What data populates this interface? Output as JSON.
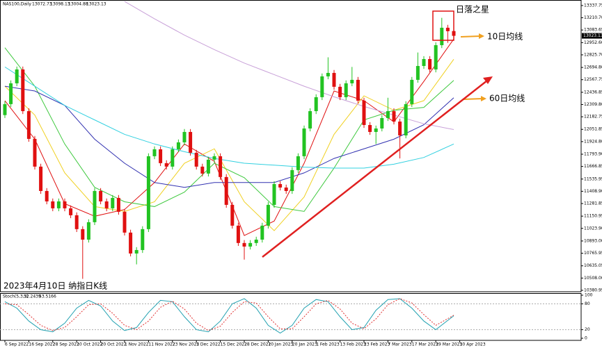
{
  "chart_data": {
    "type": "candlestick",
    "symbol": "NAS100,Daily",
    "annotations": {
      "star": "日落之星",
      "ma10": "10日均线",
      "ma60": "60日均线",
      "caption": "2023年4月10日 纳指日K线"
    },
    "up_color": "#22c322",
    "down_color": "#e01010",
    "candles": [
      [
        12200,
        12344,
        12170,
        12314
      ],
      [
        12314,
        12560,
        12284,
        12530
      ],
      [
        12530,
        12704,
        12500,
        12674
      ],
      [
        12674,
        12704,
        12211,
        12241
      ],
      [
        12241,
        12271,
        11923,
        11953
      ],
      [
        11953,
        11983,
        11635,
        11665
      ],
      [
        11665,
        11695,
        11382,
        11412
      ],
      [
        11412,
        11442,
        11274,
        11304
      ],
      [
        11304,
        11334,
        11202,
        11232
      ],
      [
        11232,
        11334,
        11202,
        11304
      ],
      [
        11304,
        11334,
        11202,
        11232
      ],
      [
        11232,
        11262,
        11130,
        11160
      ],
      [
        11160,
        11190,
        10986,
        11016
      ],
      [
        11016,
        11046,
        10500,
        10907
      ],
      [
        10907,
        11118,
        10877,
        11088
      ],
      [
        11088,
        11442,
        11058,
        11412
      ],
      [
        11412,
        11442,
        11274,
        11304
      ],
      [
        11304,
        11334,
        11202,
        11232
      ],
      [
        11232,
        11370,
        11202,
        11340
      ],
      [
        11340,
        11370,
        11166,
        11196
      ],
      [
        11196,
        11226,
        10950,
        10980
      ],
      [
        10980,
        11010,
        10733,
        10763
      ],
      [
        10763,
        10829,
        10650,
        10799
      ],
      [
        10799,
        11046,
        10769,
        11016
      ],
      [
        11016,
        11803,
        10986,
        11773
      ],
      [
        11773,
        11875,
        11743,
        11845
      ],
      [
        11845,
        11875,
        11671,
        11701
      ],
      [
        11701,
        11731,
        11635,
        11665
      ],
      [
        11665,
        11875,
        11635,
        11845
      ],
      [
        11845,
        11947,
        11815,
        11917
      ],
      [
        11917,
        12055,
        11887,
        12025
      ],
      [
        12025,
        12055,
        11779,
        11809
      ],
      [
        11809,
        11839,
        11635,
        11665
      ],
      [
        11665,
        11695,
        11563,
        11593
      ],
      [
        11593,
        11767,
        11563,
        11737
      ],
      [
        11737,
        11803,
        11707,
        11773
      ],
      [
        11773,
        11803,
        11527,
        11557
      ],
      [
        11557,
        11587,
        11238,
        11268
      ],
      [
        11268,
        11298,
        11022,
        11052
      ],
      [
        11052,
        11082,
        10842,
        10872
      ],
      [
        10872,
        10902,
        10700,
        10835
      ],
      [
        10835,
        10902,
        10805,
        10872
      ],
      [
        10872,
        10937,
        10842,
        10907
      ],
      [
        10907,
        11082,
        10877,
        11052
      ],
      [
        11052,
        11298,
        11022,
        11268
      ],
      [
        11268,
        11514,
        11238,
        11484
      ],
      [
        11484,
        11514,
        11418,
        11448
      ],
      [
        11448,
        11478,
        11382,
        11412
      ],
      [
        11412,
        11659,
        11382,
        11629
      ],
      [
        11629,
        11803,
        11599,
        11773
      ],
      [
        11773,
        12091,
        11743,
        12061
      ],
      [
        12061,
        12271,
        12031,
        12241
      ],
      [
        12241,
        12416,
        12211,
        12386
      ],
      [
        12386,
        12632,
        12356,
        12602
      ],
      [
        12602,
        12800,
        12572,
        12638
      ],
      [
        12638,
        12668,
        12464,
        12494
      ],
      [
        12494,
        12524,
        12356,
        12386
      ],
      [
        12386,
        12560,
        12356,
        12530
      ],
      [
        12530,
        12700,
        12500,
        12566
      ],
      [
        12566,
        12596,
        12320,
        12350
      ],
      [
        12350,
        12380,
        12067,
        12097
      ],
      [
        12097,
        12127,
        11995,
        12025
      ],
      [
        12025,
        12091,
        11900,
        12061
      ],
      [
        12061,
        12199,
        12031,
        12169
      ],
      [
        12169,
        12380,
        12139,
        12241
      ],
      [
        12241,
        12271,
        12103,
        12133
      ],
      [
        12133,
        12163,
        11750,
        11989
      ],
      [
        11989,
        12344,
        11959,
        12314
      ],
      [
        12314,
        12596,
        12284,
        12566
      ],
      [
        12566,
        12850,
        12536,
        12710
      ],
      [
        12710,
        12812,
        12680,
        12782
      ],
      [
        12782,
        12812,
        12644,
        12674
      ],
      [
        12674,
        12956,
        12644,
        12926
      ],
      [
        12926,
        13210,
        12896,
        13107
      ],
      [
        13107,
        13137,
        12950,
        13071
      ],
      [
        13072.73,
        13098.13,
        13004.88,
        13023.13
      ]
    ],
    "lines": [
      {
        "color": "#e01010",
        "x": [
          0,
          5,
          10,
          15,
          20,
          25,
          30,
          35,
          40,
          45,
          50,
          55,
          60,
          65,
          70,
          75
        ],
        "values": [
          12350,
          11950,
          11280,
          11150,
          11220,
          11500,
          11900,
          11720,
          10950,
          11100,
          11700,
          12450,
          12350,
          12130,
          12550,
          12990
        ]
      },
      {
        "color": "#f0d020",
        "x": [
          0,
          5,
          10,
          15,
          20,
          25,
          30,
          35,
          40,
          45,
          50,
          55,
          60,
          65,
          70,
          75
        ],
        "values": [
          12500,
          12200,
          11600,
          11250,
          11200,
          11300,
          11700,
          11850,
          11300,
          11000,
          11350,
          12000,
          12400,
          12250,
          12350,
          12780
        ]
      },
      {
        "color": "#3cc83c",
        "x": [
          0,
          5,
          10,
          15,
          20,
          25,
          30,
          35,
          40,
          45,
          50,
          55,
          60,
          65,
          70,
          75
        ],
        "values": [
          12900,
          12500,
          11900,
          11450,
          11300,
          11250,
          11400,
          11700,
          11550,
          11250,
          11200,
          11650,
          12150,
          12250,
          12280,
          12560
        ]
      },
      {
        "color": "#3030b0",
        "x": [
          0,
          5,
          10,
          15,
          20,
          25,
          30,
          35,
          40,
          45,
          50,
          55,
          60,
          65,
          70,
          75
        ],
        "values": [
          12500,
          12450,
          12300,
          11950,
          11700,
          11500,
          11450,
          11500,
          11500,
          11500,
          11600,
          11750,
          11850,
          11950,
          12100,
          12380
        ]
      },
      {
        "color": "#30d0e0",
        "x": [
          0,
          5,
          10,
          15,
          20,
          25,
          30,
          35,
          40,
          45,
          50,
          55,
          60,
          65,
          70,
          75
        ],
        "values": [
          12700,
          12500,
          12300,
          12150,
          12000,
          11900,
          11820,
          11750,
          11700,
          11680,
          11660,
          11650,
          11650,
          11690,
          11760,
          11900
        ]
      },
      {
        "color": "#c8a0d8",
        "x": [
          20,
          25,
          30,
          35,
          40,
          45,
          50,
          55,
          60,
          65,
          70,
          75
        ],
        "values": [
          13380,
          13200,
          13030,
          12880,
          12740,
          12620,
          12500,
          12390,
          12290,
          12200,
          12110,
          12050
        ]
      }
    ],
    "ylim": [
      10366,
      13395
    ],
    "yticks": [
      {
        "value": 13337.75,
        "label": "13337.75"
      },
      {
        "value": 13210.7,
        "label": "13210.70"
      },
      {
        "value": 13083.65,
        "label": "13083.65"
      },
      {
        "value": 12952.6,
        "label": "12952.60"
      },
      {
        "value": 12825.7,
        "label": "12825.70"
      },
      {
        "value": 12694.8,
        "label": "12694.80"
      },
      {
        "value": 12567.75,
        "label": "12567.75"
      },
      {
        "value": 12436.85,
        "label": "12436.85"
      },
      {
        "value": 12309.8,
        "label": "12309.80"
      },
      {
        "value": 12182.75,
        "label": "12182.75"
      },
      {
        "value": 12051.85,
        "label": "12051.85"
      },
      {
        "value": 11924.8,
        "label": "11924.80"
      },
      {
        "value": 11793.9,
        "label": "11793.90"
      },
      {
        "value": 11666.85,
        "label": "11666.85"
      },
      {
        "value": 11535.95,
        "label": "11535.95"
      },
      {
        "value": 11408.9,
        "label": "11408.90"
      },
      {
        "value": 11281.85,
        "label": "11281.85"
      },
      {
        "value": 11150.95,
        "label": "11150.95"
      },
      {
        "value": 11023.9,
        "label": "11023.90"
      },
      {
        "value": 10893.0,
        "label": "10893.00"
      },
      {
        "value": 10765.95,
        "label": "10765.95"
      },
      {
        "value": 10635.05,
        "label": "10635.05"
      },
      {
        "value": 10508.0,
        "label": "10508.00"
      },
      {
        "value": 10380.95,
        "label": "10380.95"
      }
    ],
    "xticks": [
      {
        "value": 0,
        "label": "6 Sep 2022"
      },
      {
        "value": 4,
        "label": "16 Sep 2022"
      },
      {
        "value": 8,
        "label": "28 Sep 2022"
      },
      {
        "value": 12,
        "label": "10 Oct 2022"
      },
      {
        "value": 16,
        "label": "20 Oct 2022"
      },
      {
        "value": 20,
        "label": "1 Nov 2022"
      },
      {
        "value": 24,
        "label": "11 Nov 2022"
      },
      {
        "value": 28,
        "label": "23 Nov 2022"
      },
      {
        "value": 32,
        "label": "5 Dec 2022"
      },
      {
        "value": 36,
        "label": "15 Dec 2022"
      },
      {
        "value": 40,
        "label": "28 Dec 2022"
      },
      {
        "value": 44,
        "label": "10 Jan 2023"
      },
      {
        "value": 48,
        "label": "20 Jan 2023"
      },
      {
        "value": 52,
        "label": "1 Feb 2023"
      },
      {
        "value": 56,
        "label": "13 Feb 2023"
      },
      {
        "value": 60,
        "label": "23 Feb 2023"
      },
      {
        "value": 64,
        "label": "7 Mar 2023"
      },
      {
        "value": 68,
        "label": "17 Mar 2023"
      },
      {
        "value": 72,
        "label": "29 Mar 2023"
      },
      {
        "value": 76,
        "label": "10 Apr 2023"
      }
    ],
    "stoch": {
      "label": "Stoch(5,3,3)",
      "ylim": [
        0,
        100
      ],
      "yticks": [
        100,
        80,
        20,
        0
      ],
      "levels": [
        80,
        20
      ],
      "x": [
        0,
        2,
        4,
        6,
        8,
        10,
        12,
        14,
        16,
        18,
        20,
        22,
        24,
        26,
        28,
        30,
        32,
        34,
        36,
        38,
        40,
        42,
        44,
        46,
        48,
        50,
        52,
        54,
        56,
        58,
        60,
        62,
        64,
        66,
        68,
        70,
        72,
        75
      ],
      "main": {
        "color": "#20a0b0",
        "values": [
          85,
          70,
          40,
          20,
          15,
          35,
          70,
          88,
          75,
          40,
          18,
          25,
          60,
          88,
          85,
          50,
          20,
          15,
          40,
          80,
          92,
          70,
          30,
          12,
          30,
          70,
          90,
          85,
          50,
          20,
          25,
          65,
          90,
          92,
          70,
          40,
          20,
          52.2439
        ]
      },
      "signal": {
        "color": "#e03030",
        "values": [
          80,
          78,
          55,
          30,
          18,
          25,
          50,
          78,
          80,
          58,
          30,
          20,
          40,
          72,
          86,
          68,
          35,
          18,
          28,
          60,
          85,
          82,
          50,
          22,
          22,
          50,
          80,
          88,
          68,
          35,
          22,
          45,
          78,
          92,
          82,
          55,
          30,
          53.5166
        ]
      }
    }
  }
}
